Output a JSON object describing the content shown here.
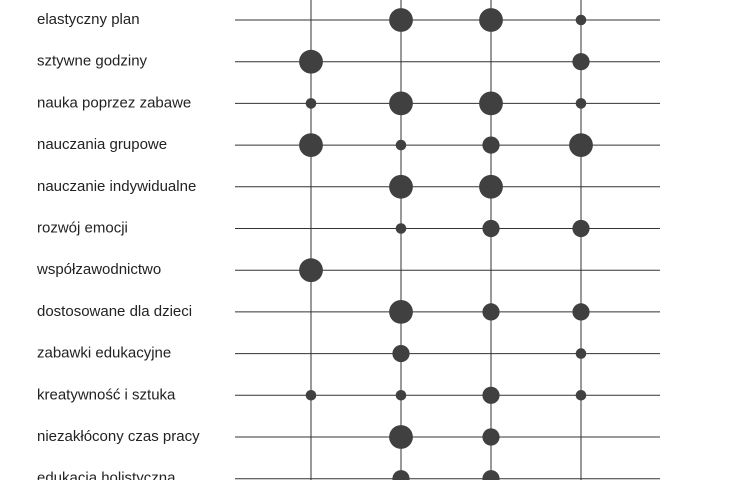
{
  "chart_data": {
    "type": "dot-matrix",
    "categories": [
      "elastyczny plan",
      "sztywne godziny",
      "nauka poprzez zabawe",
      "nauczania grupowe",
      "nauczanie indywidualne",
      "rozwój emocji",
      "współzawodnictwo",
      "dostosowane dla dzieci",
      "zabawki edukacyjne",
      "kreatywność i sztuka",
      "niezakłócony czas pracy",
      "edukacja holistyczna"
    ],
    "color": "#404040",
    "series": [
      {
        "values": [
          null,
          3,
          1,
          3,
          null,
          null,
          3,
          null,
          null,
          1,
          null,
          null
        ]
      },
      {
        "values": [
          3,
          null,
          3,
          1,
          3,
          1,
          null,
          3,
          2,
          1,
          3,
          2
        ]
      },
      {
        "values": [
          3,
          null,
          3,
          2,
          3,
          2,
          null,
          2,
          null,
          2,
          2,
          2
        ]
      },
      {
        "values": [
          1,
          2,
          1,
          3,
          null,
          2,
          null,
          2,
          1,
          1,
          null,
          null
        ]
      }
    ]
  }
}
